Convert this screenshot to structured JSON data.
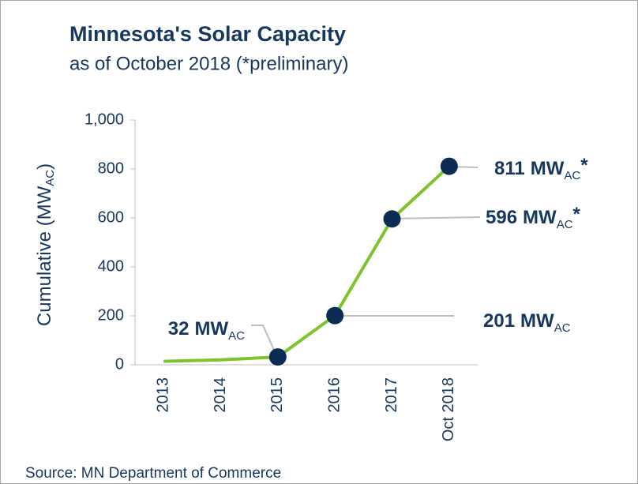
{
  "chart_data": {
    "type": "line",
    "title": "Minnesota's Solar Capacity",
    "subtitle": "as of October 2018 (*preliminary)",
    "ylabel": {
      "text": "Cumulative (MW",
      "sub": "AC",
      "end": ")"
    },
    "categories": [
      "2013",
      "2014",
      "2015",
      "2016",
      "2017",
      "Oct 2018"
    ],
    "series": [
      {
        "name": "Cumulative",
        "color": "#7dc42a",
        "marker_color": "#0d2c54",
        "values": [
          14,
          20,
          32,
          201,
          596,
          811
        ]
      }
    ],
    "labeled": [
      false,
      false,
      true,
      true,
      true,
      true
    ],
    "unit": "MW",
    "unit_subscript": "AC",
    "preliminary_marker": "*",
    "preliminary": [
      false,
      false,
      false,
      false,
      true,
      true
    ],
    "ylim": [
      0,
      1000
    ],
    "yticks": [
      0,
      200,
      400,
      600,
      800,
      {
        "value": 1000,
        "label": "1,000"
      }
    ],
    "source": "Source: MN Department of Commerce"
  }
}
